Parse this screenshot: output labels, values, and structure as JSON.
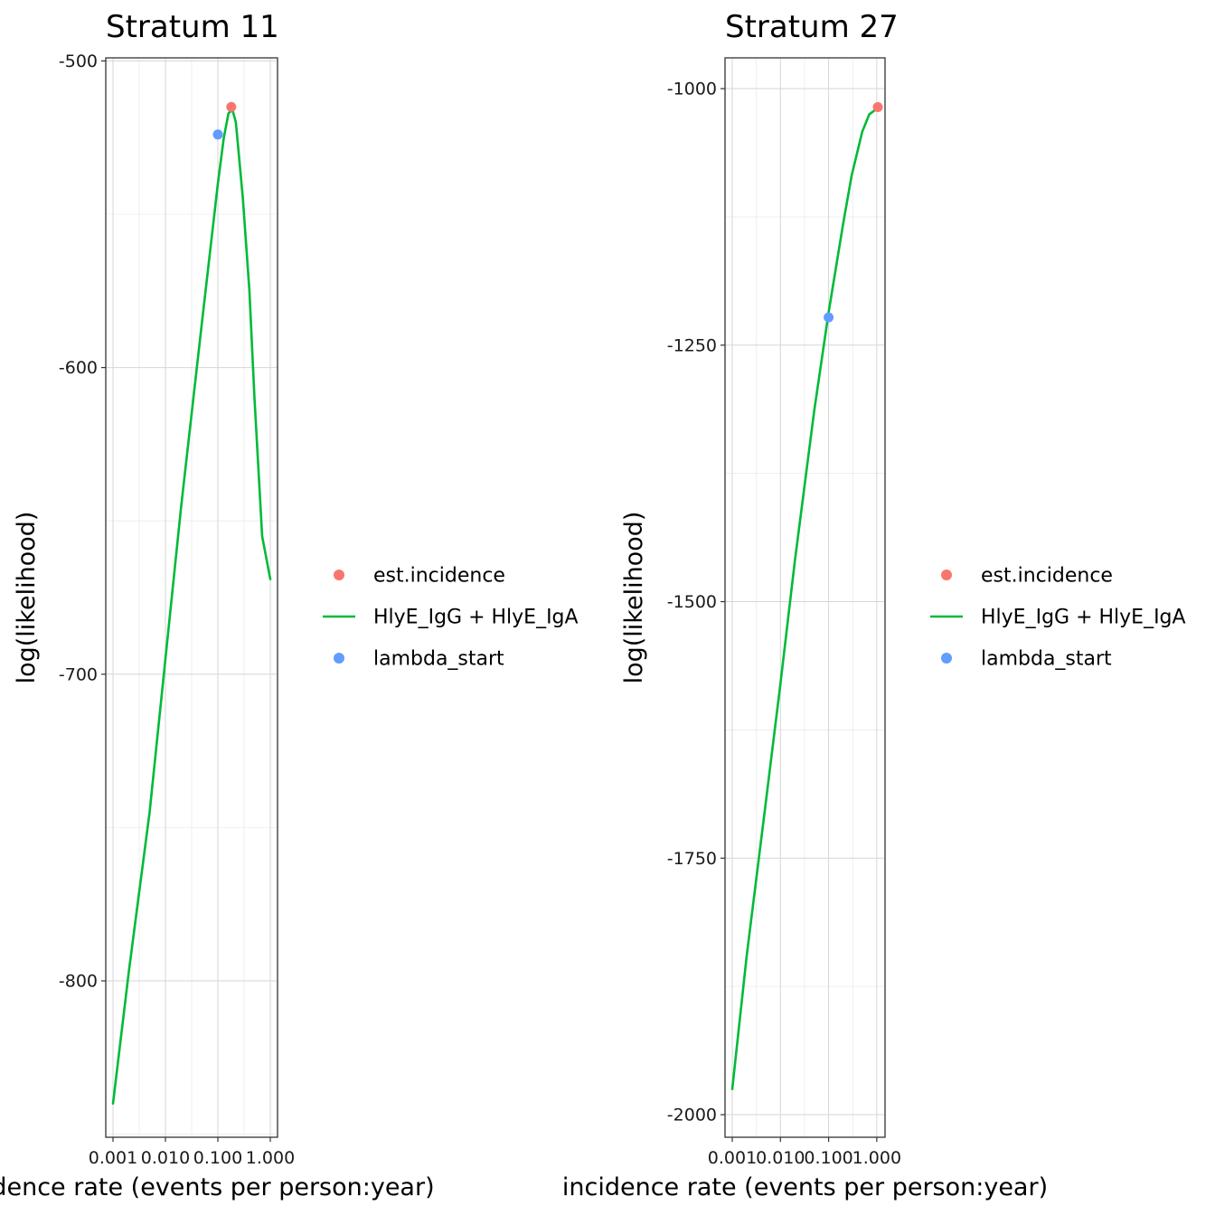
{
  "chart_data": [
    {
      "type": "line",
      "title": "Stratum 11",
      "xlabel": "incidence rate (events per person:year)",
      "ylabel": "log(likelihood)",
      "x_scale": "log10",
      "xlim": [
        0.001,
        1.0
      ],
      "ylim": [
        -851,
        -499
      ],
      "x_ticks": [
        0.001,
        0.01,
        0.1,
        1.0
      ],
      "x_tick_labels": [
        "0.001",
        "0.010",
        "0.100",
        "1.000"
      ],
      "y_ticks": [
        -500,
        -600,
        -700,
        -800
      ],
      "y_tick_labels": [
        "-500",
        "-600",
        "-700",
        "-800"
      ],
      "grid": true,
      "legend_position": "right",
      "series": [
        {
          "name": "HlyE_IgG + HlyE_IgA",
          "kind": "line",
          "color": "#00BA38",
          "x": [
            0.001,
            0.002,
            0.005,
            0.01,
            0.02,
            0.05,
            0.1,
            0.13,
            0.16,
            0.19,
            0.22,
            0.3,
            0.4,
            0.5,
            0.7,
            1.0
          ],
          "y": [
            -840,
            -797,
            -745,
            -695,
            -645,
            -585,
            -540,
            -525,
            -517,
            -516,
            -520,
            -545,
            -575,
            -610,
            -655,
            -669
          ]
        },
        {
          "name": "est.incidence",
          "kind": "point",
          "color": "#F8766D",
          "x": [
            0.18
          ],
          "y": [
            -515
          ]
        },
        {
          "name": "lambda_start",
          "kind": "point",
          "color": "#619CFF",
          "x": [
            0.1
          ],
          "y": [
            -524
          ]
        }
      ]
    },
    {
      "type": "line",
      "title": "Stratum 27",
      "xlabel": "incidence rate (events per person:year)",
      "ylabel": "log(likelihood)",
      "x_scale": "log10",
      "xlim": [
        0.001,
        1.05
      ],
      "ylim": [
        -2022,
        -970
      ],
      "x_ticks": [
        0.001,
        0.01,
        0.1,
        1.0
      ],
      "x_tick_labels": [
        "0.001",
        "0.010",
        "0.100",
        "1.000"
      ],
      "y_ticks": [
        -1000,
        -1250,
        -1500,
        -1750,
        -2000
      ],
      "y_tick_labels": [
        "-1000",
        "-1250",
        "-1500",
        "-1750",
        "-2000"
      ],
      "grid": true,
      "legend_position": "right",
      "series": [
        {
          "name": "HlyE_IgG + HlyE_IgA",
          "kind": "line",
          "color": "#00BA38",
          "x": [
            0.001,
            0.002,
            0.005,
            0.01,
            0.02,
            0.05,
            0.1,
            0.2,
            0.3,
            0.5,
            0.7,
            1.05
          ],
          "y": [
            -1975,
            -1845,
            -1695,
            -1580,
            -1460,
            -1315,
            -1218,
            -1132,
            -1085,
            -1042,
            -1025,
            -1019
          ]
        },
        {
          "name": "est.incidence",
          "kind": "point",
          "color": "#F8766D",
          "x": [
            1.05
          ],
          "y": [
            -1018
          ]
        },
        {
          "name": "lambda_start",
          "kind": "point",
          "color": "#619CFF",
          "x": [
            0.1
          ],
          "y": [
            -1223
          ]
        }
      ]
    }
  ],
  "legend": {
    "items": [
      {
        "label": "est.incidence",
        "kind": "point",
        "color": "#F8766D"
      },
      {
        "label": "HlyE_IgG + HlyE_IgA",
        "kind": "line",
        "color": "#00BA38"
      },
      {
        "label": "lambda_start",
        "kind": "point",
        "color": "#619CFF"
      }
    ]
  }
}
